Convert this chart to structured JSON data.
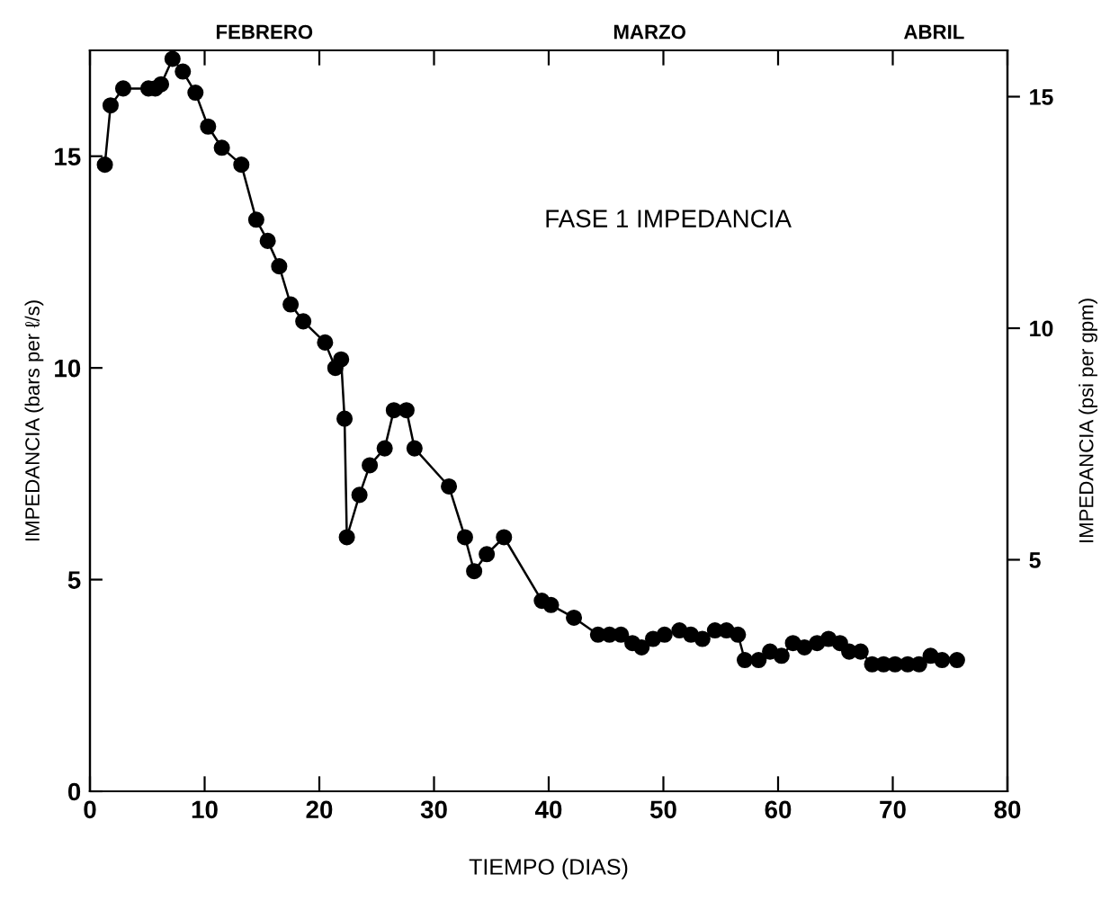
{
  "chart_data": {
    "type": "line",
    "title": "FASE 1 IMPEDANCIA",
    "xlabel": "TIEMPO (DIAS)",
    "ylabel": "IMPEDANCIA (bars per ℓ/s)",
    "y2label": "IMPEDANCIA (psi per gpm)",
    "series": [
      {
        "color": "#000000",
        "x": [
          1.3,
          1.8,
          2.9,
          5.1,
          5.7,
          6.2,
          7.2,
          8.1,
          9.2,
          10.3,
          11.5,
          13.2,
          14.5,
          15.5,
          16.5,
          17.5,
          18.6,
          20.5,
          21.4,
          21.9,
          22.2,
          22.4,
          23.5,
          24.4,
          25.7,
          26.5,
          27.6,
          28.3,
          31.3,
          32.7,
          33.5,
          34.6,
          36.1,
          39.4,
          40.2,
          42.2,
          44.3,
          45.3,
          46.3,
          47.3,
          48.1,
          49.1,
          50.1,
          51.4,
          52.4,
          53.4,
          54.5,
          55.5,
          56.5,
          57.1,
          58.3,
          59.3,
          60.3,
          61.3,
          62.3,
          63.4,
          64.4,
          65.4,
          66.2,
          67.2,
          68.2,
          69.2,
          70.2,
          71.3,
          72.3,
          73.3,
          74.3,
          75.6
        ],
        "values": [
          14.8,
          16.2,
          16.6,
          16.6,
          16.6,
          16.7,
          17.3,
          17.0,
          16.5,
          15.7,
          15.2,
          14.8,
          13.5,
          13.0,
          12.4,
          11.5,
          11.1,
          10.6,
          10.0,
          10.2,
          8.8,
          6.0,
          7.0,
          7.7,
          8.1,
          9.0,
          9.0,
          8.1,
          7.2,
          6.0,
          5.2,
          5.6,
          6.0,
          4.5,
          4.4,
          4.1,
          3.7,
          3.7,
          3.7,
          3.5,
          3.4,
          3.6,
          3.7,
          3.8,
          3.7,
          3.6,
          3.8,
          3.8,
          3.7,
          3.1,
          3.1,
          3.3,
          3.2,
          3.5,
          3.4,
          3.5,
          3.6,
          3.5,
          3.3,
          3.3,
          3.0,
          3.0,
          3.0,
          3.0,
          3.0,
          3.2,
          3.1,
          3.1
        ]
      }
    ],
    "marker": "circle",
    "line_style": "solid",
    "grid": false,
    "annotations": [
      "FEBRERO",
      "MARZO",
      "ABRIL"
    ],
    "xlim": [
      0,
      80
    ],
    "xticks": [
      0,
      10,
      20,
      30,
      40,
      50,
      60,
      70,
      80
    ],
    "ylim": [
      0,
      17.5
    ],
    "yticks": [
      0,
      5,
      10,
      15
    ],
    "y2lim": [
      0,
      16
    ],
    "y2ticks": [
      5,
      10,
      15
    ]
  }
}
